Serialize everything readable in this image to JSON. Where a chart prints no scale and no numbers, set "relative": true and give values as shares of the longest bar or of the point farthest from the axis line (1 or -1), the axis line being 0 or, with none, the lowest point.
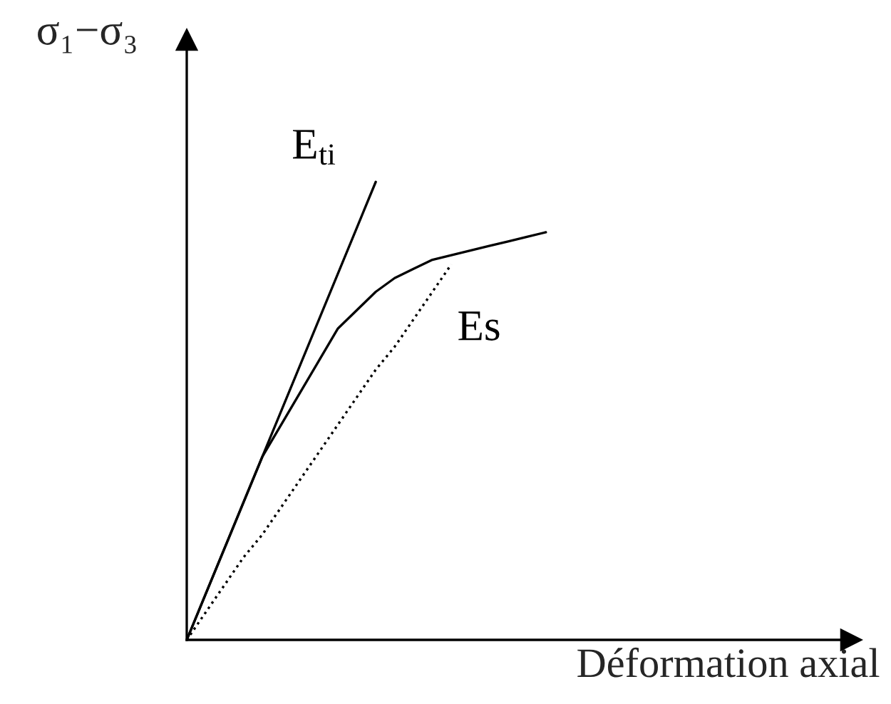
{
  "chart_data": {
    "type": "line",
    "relative": true,
    "xlabel": "Déformation axial",
    "ylabel": "σ₁−σ₃",
    "categories": [
      null,
      null,
      null,
      null,
      null,
      null,
      null,
      null,
      null,
      null,
      null,
      null,
      null,
      null,
      null,
      null,
      null,
      null,
      null,
      null
    ],
    "series": [
      {
        "color": "#000000",
        "values": [
          0,
          0.1,
          0.2,
          0.3,
          0.4,
          0.47,
          0.54,
          0.61,
          0.68,
          0.72,
          0.76,
          0.79,
          0.81,
          0.83,
          0.84,
          0.85,
          0.86,
          0.87,
          0.88,
          0.89
        ]
      },
      {
        "name": "E$_{ti}$",
        "color": "#000000",
        "values": [
          0,
          0.1,
          0.2,
          0.3,
          0.4,
          0.5,
          0.6,
          0.7,
          0.8,
          0.9,
          1.0,
          null,
          null,
          null,
          null,
          null,
          null,
          null,
          null,
          null
        ]
      },
      {
        "name": "Es",
        "color": "#000000",
        "line_style": "dotted",
        "values": [
          0,
          0.06,
          0.12,
          0.18,
          0.23,
          0.29,
          0.35,
          0.41,
          0.47,
          0.53,
          0.59,
          0.64,
          0.7,
          0.76,
          0.82,
          null,
          null,
          null,
          null,
          null
        ]
      }
    ]
  }
}
